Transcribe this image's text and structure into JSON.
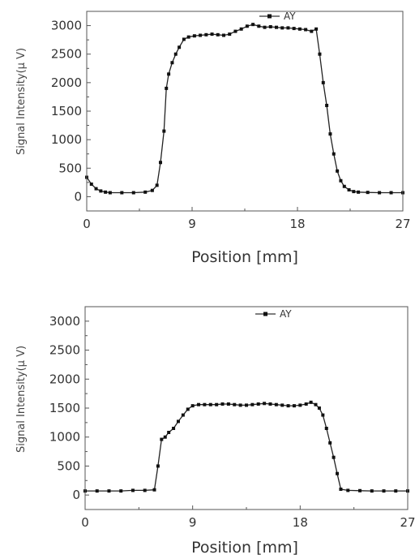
{
  "chart_data": [
    {
      "type": "line",
      "xlabel": "Position  [mm]",
      "ylabel": "Signal Intensity(μ V)",
      "xlim": [
        0,
        27
      ],
      "ylim": [
        -250,
        3250
      ],
      "xticks": [
        0,
        9,
        18,
        27
      ],
      "yticks": [
        0,
        500,
        1000,
        1500,
        2000,
        2500,
        3000
      ],
      "grid": false,
      "legend": "top-center",
      "series": [
        {
          "name": "AY",
          "x": [
            0,
            0.4,
            0.8,
            1.2,
            1.6,
            2,
            3,
            4,
            5,
            5.6,
            6,
            6.3,
            6.6,
            6.8,
            7.0,
            7.3,
            7.6,
            7.9,
            8.3,
            8.7,
            9.2,
            9.7,
            10.2,
            10.7,
            11.2,
            11.7,
            12.2,
            12.7,
            13.2,
            13.7,
            14.2,
            14.7,
            15.2,
            15.7,
            16.2,
            16.7,
            17.2,
            17.7,
            18.2,
            18.7,
            19.2,
            19.6,
            19.9,
            20.2,
            20.5,
            20.8,
            21.1,
            21.4,
            21.7,
            22.0,
            22.4,
            22.8,
            23.2,
            24,
            25,
            26,
            27
          ],
          "y": [
            340,
            220,
            140,
            100,
            80,
            70,
            70,
            70,
            80,
            110,
            200,
            600,
            1150,
            1900,
            2150,
            2350,
            2500,
            2620,
            2760,
            2800,
            2820,
            2830,
            2840,
            2850,
            2840,
            2830,
            2850,
            2900,
            2940,
            2990,
            3020,
            2990,
            2970,
            2980,
            2970,
            2960,
            2960,
            2950,
            2940,
            2930,
            2900,
            2940,
            2500,
            2000,
            1600,
            1100,
            750,
            450,
            280,
            180,
            120,
            90,
            80,
            75,
            70,
            70,
            70
          ]
        }
      ]
    },
    {
      "type": "line",
      "xlabel": "Position  [mm]",
      "ylabel": "Signal Intensity(μ V)",
      "xlim": [
        0,
        27
      ],
      "ylim": [
        -250,
        3250
      ],
      "xticks": [
        0,
        9,
        18,
        27
      ],
      "yticks": [
        0,
        500,
        1000,
        1500,
        2000,
        2500,
        3000
      ],
      "grid": false,
      "legend": "top-center",
      "series": [
        {
          "name": "AY",
          "x": [
            0,
            1,
            2,
            3,
            4,
            5,
            5.8,
            6.1,
            6.4,
            6.7,
            7.0,
            7.4,
            7.8,
            8.2,
            8.6,
            9.0,
            9.5,
            10,
            10.5,
            11,
            11.5,
            12,
            12.5,
            13,
            13.5,
            14,
            14.5,
            15,
            15.5,
            16,
            16.5,
            17,
            17.5,
            18,
            18.5,
            18.9,
            19.3,
            19.6,
            19.9,
            20.2,
            20.5,
            20.8,
            21.1,
            21.4,
            22,
            23,
            24,
            25,
            26,
            27
          ],
          "y": [
            70,
            70,
            70,
            70,
            80,
            80,
            90,
            500,
            960,
            1000,
            1080,
            1150,
            1270,
            1380,
            1480,
            1540,
            1560,
            1560,
            1560,
            1560,
            1570,
            1570,
            1560,
            1550,
            1550,
            1560,
            1570,
            1580,
            1570,
            1560,
            1550,
            1540,
            1540,
            1550,
            1570,
            1600,
            1560,
            1500,
            1380,
            1150,
            900,
            650,
            370,
            100,
            80,
            75,
            70,
            70,
            70,
            70
          ]
        }
      ]
    }
  ]
}
